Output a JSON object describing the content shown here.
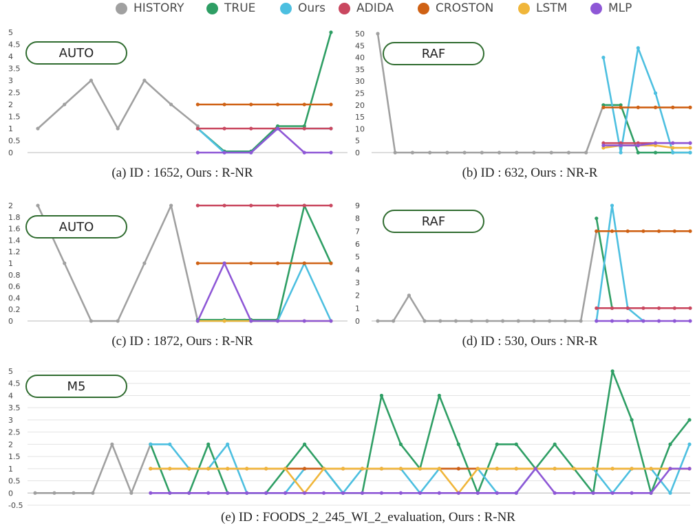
{
  "legend": [
    {
      "name": "HISTORY",
      "color": "#a0a0a0"
    },
    {
      "name": "TRUE",
      "color": "#2e9e64"
    },
    {
      "name": "Ours",
      "color": "#4cbfe0"
    },
    {
      "name": "ADIDA",
      "color": "#c9475f"
    },
    {
      "name": "CROSTON",
      "color": "#cf6114"
    },
    {
      "name": "LSTM",
      "color": "#f0b63a"
    },
    {
      "name": "MLP",
      "color": "#8e57d6"
    }
  ],
  "chart_data": [
    {
      "type": "line",
      "caption": "(a) ID : 1652, Ours : R-NR",
      "tag": "AUTO",
      "ylim": [
        0,
        5
      ],
      "yticks": [
        "0",
        "0.5",
        "1",
        "1.5",
        "2",
        "2.5",
        "3",
        "3.5",
        "4",
        "4.5",
        "5"
      ],
      "series": [
        {
          "name": "HISTORY",
          "color": "#a0a0a0",
          "x": [
            0,
            1,
            2,
            3,
            4,
            5,
            6
          ],
          "y": [
            1,
            2,
            3,
            1,
            3,
            2,
            1.1
          ]
        },
        {
          "name": "TRUE",
          "color": "#2e9e64",
          "x": [
            6,
            7,
            8,
            9,
            10,
            11
          ],
          "y": [
            1,
            0.05,
            0.05,
            1.1,
            1.1,
            5
          ]
        },
        {
          "name": "Ours",
          "color": "#4cbfe0",
          "x": [
            6,
            7,
            8,
            9,
            10,
            11
          ],
          "y": [
            1,
            0,
            0,
            1,
            1,
            1
          ]
        },
        {
          "name": "ADIDA",
          "color": "#c9475f",
          "x": [
            6,
            7,
            8,
            9,
            10,
            11
          ],
          "y": [
            1,
            1,
            1,
            1,
            1,
            1
          ]
        },
        {
          "name": "CROSTON",
          "color": "#cf6114",
          "x": [
            6,
            7,
            8,
            9,
            10,
            11
          ],
          "y": [
            2,
            2,
            2,
            2,
            2,
            2
          ]
        },
        {
          "name": "MLP",
          "color": "#8e57d6",
          "x": [
            6,
            7,
            8,
            9,
            10,
            11
          ],
          "y": [
            0,
            0,
            0,
            1,
            0,
            0
          ]
        }
      ]
    },
    {
      "type": "line",
      "caption": "(b) ID : 632, Ours : NR-R",
      "tag": "RAF",
      "ylim": [
        0,
        50
      ],
      "yticks": [
        "0",
        "5",
        "10",
        "15",
        "20",
        "25",
        "30",
        "35",
        "40",
        "45",
        "50"
      ],
      "series": [
        {
          "name": "HISTORY",
          "color": "#a0a0a0",
          "x": [
            0,
            1,
            2,
            3,
            4,
            5,
            6,
            7,
            8,
            9,
            10,
            11,
            12,
            13
          ],
          "y": [
            50,
            0,
            0,
            0,
            0,
            0,
            0,
            0,
            0,
            0,
            0,
            0,
            0,
            20
          ]
        },
        {
          "name": "TRUE",
          "color": "#2e9e64",
          "x": [
            13,
            14,
            15,
            16,
            17,
            18
          ],
          "y": [
            20,
            20,
            0,
            0,
            0,
            0
          ]
        },
        {
          "name": "Ours",
          "color": "#4cbfe0",
          "x": [
            13,
            14,
            15,
            16,
            17,
            18
          ],
          "y": [
            40,
            0,
            44,
            25,
            0,
            0
          ]
        },
        {
          "name": "ADIDA",
          "color": "#c9475f",
          "x": [
            13,
            14,
            15,
            16,
            17,
            18
          ],
          "y": [
            4,
            4,
            4,
            4,
            4,
            4
          ]
        },
        {
          "name": "CROSTON",
          "color": "#cf6114",
          "x": [
            13,
            14,
            15,
            16,
            17,
            18
          ],
          "y": [
            19,
            19,
            19,
            19,
            19,
            19
          ]
        },
        {
          "name": "LSTM",
          "color": "#f0b63a",
          "x": [
            13,
            14,
            15,
            16,
            17,
            18
          ],
          "y": [
            2,
            3,
            3,
            3,
            2,
            2
          ]
        },
        {
          "name": "MLP",
          "color": "#8e57d6",
          "x": [
            13,
            14,
            15,
            16,
            17,
            18
          ],
          "y": [
            3,
            3,
            3,
            4,
            4,
            4
          ]
        }
      ]
    },
    {
      "type": "line",
      "caption": "(c) ID : 1872, Ours : R-NR",
      "tag": "AUTO",
      "ylim": [
        0,
        2
      ],
      "yticks": [
        "0",
        "0.2",
        "0.4",
        "0.6",
        "0.8",
        "1",
        "1.2",
        "1.4",
        "1.6",
        "1.8",
        "2"
      ],
      "series": [
        {
          "name": "HISTORY",
          "color": "#a0a0a0",
          "x": [
            0,
            1,
            2,
            3,
            4,
            5,
            6
          ],
          "y": [
            2,
            1,
            0,
            0,
            1,
            2,
            0
          ]
        },
        {
          "name": "TRUE",
          "color": "#2e9e64",
          "x": [
            6,
            7,
            8,
            9,
            10,
            11
          ],
          "y": [
            0.02,
            0.02,
            0.02,
            0.02,
            2,
            1
          ]
        },
        {
          "name": "Ours",
          "color": "#4cbfe0",
          "x": [
            6,
            7,
            8,
            9,
            10,
            11
          ],
          "y": [
            0,
            0,
            0,
            0,
            1,
            0
          ]
        },
        {
          "name": "ADIDA",
          "color": "#c9475f",
          "x": [
            6,
            7,
            8,
            9,
            10,
            11
          ],
          "y": [
            2,
            2,
            2,
            2,
            2,
            2
          ]
        },
        {
          "name": "CROSTON",
          "color": "#cf6114",
          "x": [
            6,
            7,
            8,
            9,
            10,
            11
          ],
          "y": [
            1,
            1,
            1,
            1,
            1,
            1
          ]
        },
        {
          "name": "LSTM",
          "color": "#f0b63a",
          "x": [
            6,
            7,
            8,
            9,
            10,
            11
          ],
          "y": [
            0,
            0,
            0,
            0,
            0,
            0
          ]
        },
        {
          "name": "MLP",
          "color": "#8e57d6",
          "x": [
            6,
            7,
            8,
            9,
            10,
            11
          ],
          "y": [
            0,
            1,
            0,
            0,
            0,
            0
          ]
        }
      ]
    },
    {
      "type": "line",
      "caption": "(d) ID : 530, Ours : NR-R",
      "tag": "RAF",
      "ylim": [
        0,
        9
      ],
      "yticks": [
        "0",
        "1",
        "2",
        "3",
        "4",
        "5",
        "6",
        "7",
        "8",
        "9"
      ],
      "series": [
        {
          "name": "HISTORY",
          "color": "#a0a0a0",
          "x": [
            0,
            1,
            2,
            3,
            4,
            5,
            6,
            7,
            8,
            9,
            10,
            11,
            12,
            13,
            14
          ],
          "y": [
            0,
            0,
            2,
            0,
            0,
            0,
            0,
            0,
            0,
            0,
            0,
            0,
            0,
            0,
            7
          ]
        },
        {
          "name": "TRUE",
          "color": "#2e9e64",
          "x": [
            14,
            15
          ],
          "y": [
            8,
            1
          ]
        },
        {
          "name": "Ours",
          "color": "#4cbfe0",
          "x": [
            14,
            15,
            16,
            17
          ],
          "y": [
            0,
            9,
            1,
            0
          ]
        },
        {
          "name": "ADIDA",
          "color": "#c9475f",
          "x": [
            14,
            15,
            16,
            17,
            18,
            19,
            20
          ],
          "y": [
            1,
            1,
            1,
            1,
            1,
            1,
            1
          ]
        },
        {
          "name": "CROSTON",
          "color": "#cf6114",
          "x": [
            14,
            15,
            16,
            17,
            18,
            19,
            20
          ],
          "y": [
            7,
            7,
            7,
            7,
            7,
            7,
            7
          ]
        },
        {
          "name": "MLP",
          "color": "#8e57d6",
          "x": [
            14,
            15,
            16,
            17,
            18,
            19,
            20
          ],
          "y": [
            0,
            0,
            0,
            0,
            0,
            0,
            0
          ]
        }
      ]
    },
    {
      "type": "line",
      "caption": "(e) ID : FOODS_2_245_WI_2_evaluation, Ours : R-NR",
      "tag": "M5",
      "ylim": [
        -0.5,
        5
      ],
      "yticks": [
        "-0.5",
        "0",
        "0.5",
        "1",
        "1.5",
        "2",
        "2.5",
        "3",
        "3.5",
        "4",
        "4.5",
        "5"
      ],
      "series": [
        {
          "name": "HISTORY",
          "color": "#a0a0a0",
          "x": [
            0,
            1,
            2,
            3,
            4,
            5,
            6
          ],
          "y": [
            0,
            0,
            0,
            0,
            2,
            0,
            2
          ]
        },
        {
          "name": "TRUE",
          "color": "#2e9e64",
          "x": [
            6,
            7,
            8,
            9,
            10,
            11,
            12,
            13,
            14,
            15,
            16,
            17,
            18,
            19,
            20,
            21,
            22,
            23,
            24,
            25,
            26,
            27,
            28,
            29,
            30,
            31,
            32,
            33,
            34
          ],
          "y": [
            2,
            0,
            0,
            2,
            0,
            0,
            0,
            1,
            2,
            1,
            0,
            0,
            4,
            2,
            1,
            4,
            2,
            0,
            2,
            2,
            1,
            2,
            1,
            0,
            5,
            3,
            0,
            2,
            3
          ]
        },
        {
          "name": "Ours",
          "color": "#4cbfe0",
          "x": [
            6,
            7,
            8,
            9,
            10,
            11,
            12,
            13,
            14,
            15,
            16,
            17,
            18,
            19,
            20,
            21,
            22,
            23,
            24,
            25,
            26,
            27,
            28,
            29,
            30,
            31,
            32,
            33,
            34
          ],
          "y": [
            2,
            2,
            1,
            1,
            2,
            0,
            0,
            0,
            1,
            1,
            0,
            1,
            1,
            1,
            0,
            1,
            1,
            1,
            0,
            0,
            1,
            1,
            1,
            1,
            0,
            1,
            1,
            0,
            2
          ]
        },
        {
          "name": "ADIDA",
          "color": "#c9475f",
          "x": [
            6,
            7,
            8,
            9,
            10,
            11,
            12,
            13,
            14,
            15,
            16,
            17,
            18,
            19,
            20,
            21,
            22,
            23,
            24,
            25,
            26,
            27,
            28,
            29,
            30,
            31,
            32,
            33,
            34
          ],
          "y": [
            1,
            1,
            1,
            1,
            1,
            1,
            1,
            1,
            1,
            1,
            1,
            1,
            1,
            1,
            1,
            1,
            1,
            1,
            1,
            1,
            1,
            1,
            1,
            1,
            1,
            1,
            1,
            1,
            1
          ]
        },
        {
          "name": "CROSTON",
          "color": "#cf6114",
          "x": [
            6,
            7,
            8,
            9,
            10,
            11,
            12,
            13,
            14,
            15,
            16,
            17,
            18,
            19,
            20,
            21,
            22,
            23,
            24,
            25,
            26,
            27,
            28,
            29,
            30,
            31,
            32,
            33,
            34
          ],
          "y": [
            1,
            1,
            1,
            1,
            1,
            1,
            1,
            1,
            1,
            1,
            1,
            1,
            1,
            1,
            1,
            1,
            1,
            1,
            1,
            1,
            1,
            1,
            1,
            1,
            1,
            1,
            1,
            1,
            1
          ]
        },
        {
          "name": "LSTM",
          "color": "#f0b63a",
          "x": [
            6,
            7,
            8,
            9,
            10,
            11,
            12,
            13,
            14,
            15,
            16,
            17,
            18,
            19,
            20,
            21,
            22,
            23,
            24,
            25,
            26,
            27,
            28,
            29,
            30,
            31,
            32,
            33,
            34
          ],
          "y": [
            1,
            1,
            1,
            1,
            1,
            1,
            1,
            1,
            0,
            1,
            1,
            1,
            1,
            1,
            1,
            1,
            0,
            1,
            1,
            1,
            1,
            1,
            1,
            1,
            1,
            1,
            1,
            1,
            1
          ]
        },
        {
          "name": "MLP",
          "color": "#8e57d6",
          "x": [
            6,
            7,
            8,
            9,
            10,
            11,
            12,
            13,
            14,
            15,
            16,
            17,
            18,
            19,
            20,
            21,
            22,
            23,
            24,
            25,
            26,
            27,
            28,
            29,
            30,
            31,
            32,
            33,
            34
          ],
          "y": [
            0,
            0,
            0,
            0,
            0,
            0,
            0,
            0,
            0,
            0,
            0,
            0,
            0,
            0,
            0,
            0,
            0,
            0,
            0,
            0,
            1,
            0,
            0,
            0,
            0,
            0,
            0,
            1,
            1
          ]
        }
      ]
    }
  ]
}
